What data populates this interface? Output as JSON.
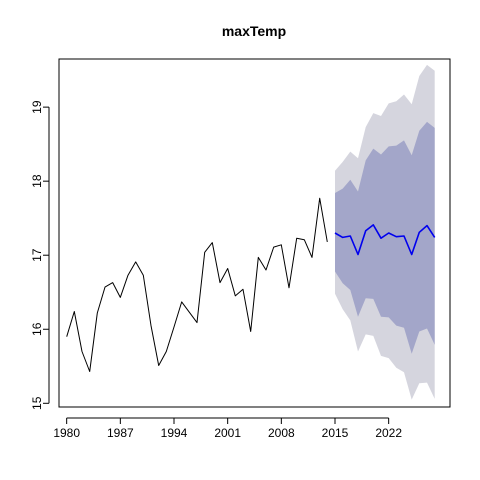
{
  "chart_data": {
    "type": "line",
    "title": "maxTemp",
    "xlabel": "",
    "ylabel": "",
    "xlim": [
      1979,
      2030
    ],
    "ylim": [
      14.95,
      19.65
    ],
    "x_ticks": [
      1980,
      1987,
      1994,
      2001,
      2008,
      2015,
      2022
    ],
    "x_tick_labels": [
      "1980",
      "1987",
      "1994",
      "2001",
      "2008",
      "2015",
      "2022"
    ],
    "y_ticks": [
      15,
      16,
      17,
      18,
      19
    ],
    "y_tick_labels": [
      "15",
      "16",
      "17",
      "18",
      "19"
    ],
    "grid": false,
    "legend": "none",
    "series": [
      {
        "kind": "observed",
        "color": "#000000",
        "x": [
          1980,
          1981,
          1982,
          1983,
          1984,
          1985,
          1986,
          1987,
          1988,
          1989,
          1990,
          1991,
          1992,
          1993,
          1994,
          1995,
          1996,
          1997,
          1998,
          1999,
          2000,
          2001,
          2002,
          2003,
          2004,
          2005,
          2006,
          2007,
          2008,
          2009,
          2010,
          2011,
          2012,
          2013,
          2014
        ],
        "y": [
          15.9,
          16.24,
          15.7,
          15.43,
          16.22,
          16.57,
          16.63,
          16.43,
          16.73,
          16.91,
          16.73,
          16.05,
          15.51,
          15.7,
          16.03,
          16.37,
          16.23,
          16.09,
          17.04,
          17.17,
          16.63,
          16.82,
          16.45,
          16.54,
          15.97,
          16.97,
          16.8,
          17.11,
          17.14,
          16.56,
          17.23,
          17.21,
          16.97,
          17.77,
          17.18
        ]
      },
      {
        "kind": "forecast",
        "color": "#0000ee",
        "x": [
          2015,
          2016,
          2017,
          2018,
          2019,
          2020,
          2021,
          2022,
          2023,
          2024,
          2025,
          2026,
          2027,
          2028
        ],
        "y": [
          17.3,
          17.24,
          17.26,
          17.01,
          17.33,
          17.41,
          17.23,
          17.3,
          17.25,
          17.26,
          17.01,
          17.31,
          17.4,
          17.24
        ]
      }
    ],
    "intervals": [
      {
        "kind": "outer",
        "color": "#d5d5de",
        "x": [
          2015,
          2016,
          2017,
          2018,
          2019,
          2020,
          2021,
          2022,
          2023,
          2024,
          2025,
          2026,
          2027,
          2028
        ],
        "lower": [
          16.48,
          16.27,
          16.12,
          15.7,
          15.93,
          15.91,
          15.64,
          15.61,
          15.48,
          15.42,
          15.05,
          15.27,
          15.28,
          15.06
        ],
        "upper": [
          18.14,
          18.26,
          18.4,
          18.31,
          18.73,
          18.92,
          18.88,
          19.05,
          19.08,
          19.17,
          19.04,
          19.42,
          19.57,
          19.49
        ]
      },
      {
        "kind": "inner",
        "color": "#a3a6c9",
        "x": [
          2015,
          2016,
          2017,
          2018,
          2019,
          2020,
          2021,
          2022,
          2023,
          2024,
          2025,
          2026,
          2027,
          2028
        ],
        "lower": [
          16.78,
          16.62,
          16.53,
          16.17,
          16.42,
          16.41,
          16.17,
          16.16,
          16.05,
          16.02,
          15.67,
          15.97,
          16.01,
          15.79
        ],
        "upper": [
          17.84,
          17.9,
          18.02,
          17.86,
          18.28,
          18.44,
          18.36,
          18.47,
          18.48,
          18.55,
          18.35,
          18.68,
          18.8,
          18.72
        ]
      }
    ]
  }
}
